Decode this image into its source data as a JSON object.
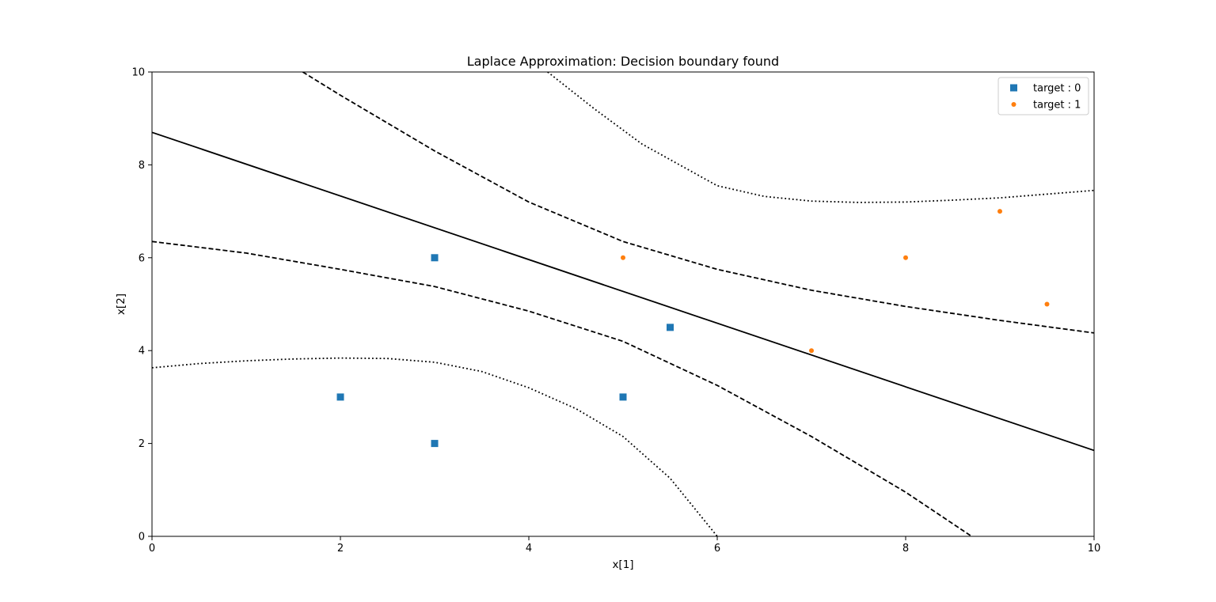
{
  "chart_data": {
    "type": "scatter",
    "title": "Laplace Approximation: Decision boundary found",
    "xlabel": "x[1]",
    "ylabel": "x[2]",
    "xlim": [
      0,
      10
    ],
    "ylim": [
      0,
      10
    ],
    "xticks": [
      0,
      2,
      4,
      6,
      8,
      10
    ],
    "yticks": [
      0,
      2,
      4,
      6,
      8,
      10
    ],
    "grid": false,
    "legend_position": "top-right",
    "series": [
      {
        "name": "target : 0",
        "marker": "square",
        "color": "#1f77b4",
        "points": [
          [
            2,
            3
          ],
          [
            3,
            2
          ],
          [
            3,
            6
          ],
          [
            5,
            3
          ],
          [
            5.5,
            4.5
          ]
        ]
      },
      {
        "name": "target : 1",
        "marker": "circle",
        "color": "#ff7f0e",
        "points": [
          [
            5,
            6
          ],
          [
            7,
            4
          ],
          [
            8,
            6
          ],
          [
            9,
            7
          ],
          [
            9.5,
            5
          ]
        ]
      }
    ],
    "curves": [
      {
        "style": "solid",
        "points": [
          [
            0,
            8.7
          ],
          [
            10,
            1.85
          ]
        ]
      },
      {
        "style": "dashed",
        "points": [
          [
            1.6,
            10.0
          ],
          [
            2.0,
            9.5
          ],
          [
            3.0,
            8.3
          ],
          [
            4.0,
            7.2
          ],
          [
            5.0,
            6.35
          ],
          [
            6.0,
            5.75
          ],
          [
            7.0,
            5.3
          ],
          [
            8.0,
            4.95
          ],
          [
            9.0,
            4.65
          ],
          [
            10.0,
            4.38
          ]
        ]
      },
      {
        "style": "dashed",
        "points": [
          [
            0.0,
            6.35
          ],
          [
            1.0,
            6.1
          ],
          [
            2.0,
            5.75
          ],
          [
            3.0,
            5.38
          ],
          [
            4.0,
            4.85
          ],
          [
            5.0,
            4.2
          ],
          [
            6.0,
            3.25
          ],
          [
            7.0,
            2.15
          ],
          [
            8.0,
            0.95
          ],
          [
            8.7,
            0.0
          ]
        ]
      },
      {
        "style": "dotted",
        "points": [
          [
            4.2,
            10.0
          ],
          [
            4.7,
            9.2
          ],
          [
            5.2,
            8.45
          ],
          [
            6.0,
            7.55
          ],
          [
            6.5,
            7.32
          ],
          [
            7.0,
            7.22
          ],
          [
            7.5,
            7.19
          ],
          [
            8.0,
            7.2
          ],
          [
            8.5,
            7.24
          ],
          [
            9.0,
            7.29
          ],
          [
            9.5,
            7.37
          ],
          [
            10.0,
            7.45
          ]
        ]
      },
      {
        "style": "dotted",
        "points": [
          [
            0.0,
            3.63
          ],
          [
            0.5,
            3.72
          ],
          [
            1.0,
            3.78
          ],
          [
            1.5,
            3.82
          ],
          [
            2.0,
            3.84
          ],
          [
            2.5,
            3.83
          ],
          [
            3.0,
            3.75
          ],
          [
            3.5,
            3.55
          ],
          [
            4.0,
            3.2
          ],
          [
            4.5,
            2.75
          ],
          [
            5.0,
            2.15
          ],
          [
            5.5,
            1.25
          ],
          [
            6.0,
            0.0
          ]
        ]
      }
    ]
  }
}
